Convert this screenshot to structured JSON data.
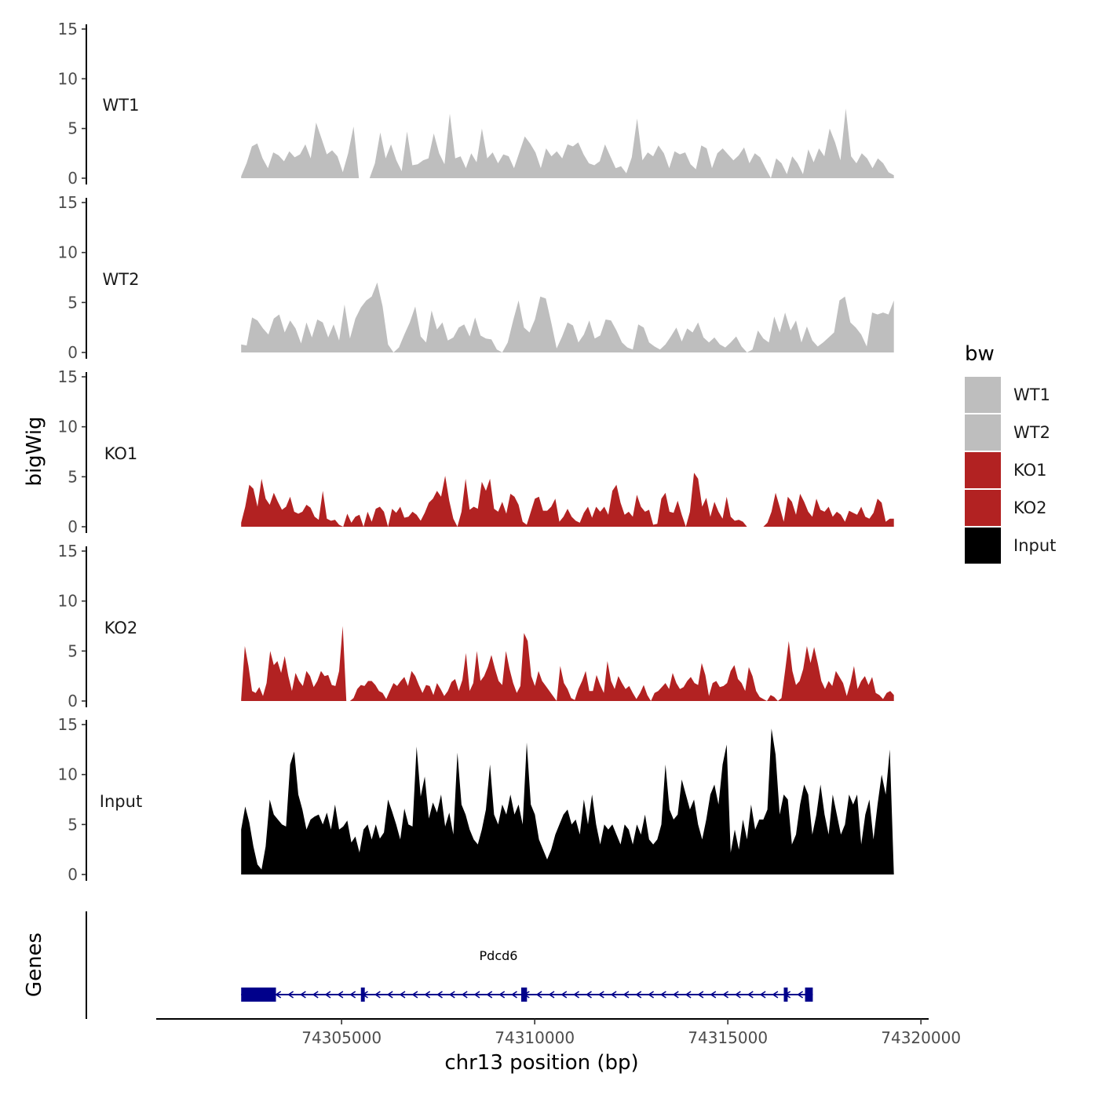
{
  "chart_data": {
    "type": "area",
    "ylabel": "bigWig",
    "genes_label": "Genes",
    "xlabel": "chr13 position (bp)",
    "x_start": 74302400,
    "x_end": 74319300,
    "xlim": [
      74300200,
      74320200
    ],
    "x_ticks": [
      74305000,
      74310000,
      74315000,
      74320000
    ],
    "x_tick_labels": [
      "74305000",
      "74310000",
      "74315000",
      "74320000"
    ],
    "ylim": [
      0,
      15
    ],
    "y_ticks": [
      0,
      5,
      10,
      15
    ],
    "y_tick_labels": [
      "0",
      "5",
      "10",
      "15"
    ],
    "legend": {
      "title": "bw",
      "entries": [
        {
          "label": "WT1",
          "color": "#bebebe"
        },
        {
          "label": "WT2",
          "color": "#bebebe"
        },
        {
          "label": "KO1",
          "color": "#b22222"
        },
        {
          "label": "KO2",
          "color": "#b22222"
        },
        {
          "label": "Input",
          "color": "#000000"
        }
      ]
    },
    "series": [
      {
        "name": "WT1",
        "color": "#bebebe",
        "values": [
          0.2,
          1.5,
          3.2,
          3.5,
          2.0,
          1.0,
          2.6,
          2.3,
          1.7,
          2.7,
          2.1,
          2.4,
          3.4,
          2.0,
          5.6,
          4.0,
          2.4,
          2.8,
          2.2,
          0.6,
          2.5,
          5.2,
          0,
          0,
          0,
          1.5,
          4.6,
          2.0,
          3.4,
          1.8,
          0.7,
          4.7,
          1.3,
          1.4,
          1.8,
          2.0,
          4.5,
          2.5,
          1.4,
          6.5,
          2.0,
          2.2,
          1.0,
          2.5,
          1.6,
          5.0,
          2.0,
          2.6,
          1.5,
          2.4,
          2.2,
          1.0,
          2.6,
          4.2,
          3.5,
          2.6,
          1.0,
          3.0,
          2.2,
          2.7,
          2.0,
          3.4,
          3.2,
          3.6,
          2.4,
          1.5,
          1.3,
          1.7,
          3.4,
          2.2,
          1.0,
          1.2,
          0.5,
          2.1,
          6.0,
          1.8,
          2.6,
          2.2,
          3.3,
          2.5,
          1.0,
          2.7,
          2.4,
          2.6,
          1.4,
          0.9,
          3.3,
          3.0,
          1.0,
          2.5,
          3.0,
          2.4,
          1.8,
          2.3,
          3.1,
          1.5,
          2.5,
          2.1,
          1.0,
          0,
          2.0,
          1.5,
          0.4,
          2.2,
          1.5,
          0.4,
          2.9,
          1.6,
          3.0,
          2.2,
          5.0,
          3.6,
          1.8,
          7.0,
          2.2,
          1.5,
          2.5,
          2.0,
          1.0,
          2.0,
          1.5,
          0.6,
          0.3
        ]
      },
      {
        "name": "WT2",
        "color": "#bebebe",
        "values": [
          0.8,
          0.7,
          3.5,
          3.2,
          2.4,
          1.8,
          3.4,
          3.8,
          2.0,
          3.2,
          2.4,
          0.9,
          3.0,
          1.5,
          3.3,
          3.0,
          1.5,
          2.8,
          1.2,
          4.8,
          1.4,
          3.4,
          4.5,
          5.2,
          5.6,
          7.0,
          4.6,
          0.8,
          0,
          0.5,
          1.8,
          3.0,
          4.6,
          1.6,
          1.0,
          4.2,
          2.3,
          3.0,
          1.2,
          1.5,
          2.5,
          2.8,
          1.6,
          3.5,
          1.7,
          1.4,
          1.3,
          0.3,
          0,
          1.0,
          3.2,
          5.2,
          2.5,
          2.0,
          3.3,
          5.6,
          5.4,
          3.0,
          0.4,
          1.6,
          3.0,
          2.7,
          1.0,
          1.8,
          3.2,
          1.4,
          1.7,
          3.3,
          3.2,
          2.2,
          1.0,
          0.5,
          0.3,
          2.8,
          2.5,
          1.0,
          0.6,
          0.3,
          0.8,
          1.6,
          2.5,
          1.1,
          2.4,
          2.0,
          3.0,
          1.5,
          1.0,
          1.5,
          0.8,
          0.5,
          1.0,
          1.6,
          0.6,
          0,
          0.3,
          2.2,
          1.4,
          1.0,
          3.6,
          2.0,
          4.0,
          2.2,
          3.2,
          1.0,
          2.6,
          1.2,
          0.6,
          1.0,
          1.5,
          2.0,
          5.2,
          5.6,
          3.0,
          2.5,
          1.8,
          0.6,
          4.0,
          3.8,
          4.0,
          3.8,
          5.2
        ]
      },
      {
        "name": "KO1",
        "color": "#b22222",
        "values": [
          0.4,
          2.0,
          4.2,
          3.8,
          2.0,
          4.8,
          2.8,
          2.2,
          3.4,
          2.5,
          1.7,
          2.0,
          3.0,
          1.5,
          1.3,
          1.5,
          2.2,
          1.9,
          1.0,
          0.7,
          3.6,
          0.8,
          0.6,
          0.7,
          0.2,
          0,
          1.3,
          0.4,
          1.0,
          1.2,
          0,
          1.5,
          0.5,
          1.8,
          2.0,
          1.5,
          0,
          1.8,
          1.4,
          2.0,
          0.9,
          1.0,
          1.5,
          1.2,
          0.6,
          1.4,
          2.4,
          2.8,
          3.6,
          3.0,
          5.1,
          2.6,
          0.8,
          0,
          1.5,
          4.8,
          1.7,
          2.0,
          1.8,
          4.5,
          3.6,
          4.8,
          1.8,
          1.5,
          2.5,
          1.3,
          3.3,
          3.0,
          2.2,
          0.5,
          0.2,
          1.5,
          2.8,
          3.0,
          1.6,
          1.6,
          2.0,
          2.8,
          0.5,
          1.0,
          1.8,
          1.0,
          0.6,
          0.4,
          1.4,
          2.0,
          0.9,
          2.0,
          1.5,
          2.0,
          1.2,
          3.6,
          4.2,
          2.4,
          1.2,
          1.5,
          1.0,
          3.2,
          2.0,
          1.5,
          1.7,
          0.2,
          0.3,
          2.8,
          3.4,
          1.5,
          1.4,
          2.6,
          1.2,
          0,
          1.5,
          5.4,
          4.8,
          2.0,
          2.9,
          1.0,
          2.5,
          1.5,
          0.8,
          3.0,
          1.0,
          0.6,
          0.7,
          0.5,
          0,
          0,
          0,
          0,
          0,
          0.4,
          1.5,
          3.4,
          2.0,
          0.5,
          3.0,
          2.5,
          1.2,
          3.3,
          2.5,
          1.5,
          1.0,
          2.8,
          1.7,
          1.5,
          2.0,
          1.0,
          1.5,
          1.2,
          0.5,
          1.6,
          1.4,
          1.2,
          2.0,
          1.0,
          0.8,
          1.4,
          2.8,
          2.4,
          0.5,
          0.8,
          0.8
        ]
      },
      {
        "name": "KO2",
        "color": "#b22222",
        "values": [
          0.2,
          5.5,
          3.5,
          1.0,
          0.8,
          1.4,
          0.5,
          1.8,
          5.0,
          3.6,
          4.0,
          2.8,
          4.5,
          2.5,
          1.0,
          2.8,
          2.0,
          1.5,
          3.0,
          2.5,
          1.4,
          2.0,
          3.0,
          2.5,
          2.6,
          1.6,
          1.5,
          3.0,
          7.5,
          0,
          0,
          0.3,
          1.2,
          1.6,
          1.5,
          2.0,
          2.0,
          1.6,
          1.0,
          0.8,
          0.2,
          1.0,
          1.8,
          1.5,
          2.0,
          2.4,
          1.5,
          3.0,
          2.5,
          1.6,
          0.8,
          1.6,
          1.5,
          0.6,
          1.8,
          1.2,
          0.5,
          1.0,
          1.9,
          2.2,
          1.0,
          2.1,
          4.8,
          1.0,
          1.8,
          5.0,
          2.0,
          2.5,
          3.4,
          4.6,
          3.2,
          2.0,
          1.6,
          5.0,
          3.2,
          1.8,
          0.8,
          1.5,
          6.8,
          6.0,
          2.5,
          1.5,
          3.0,
          2.0,
          1.5,
          1.0,
          0.5,
          0,
          3.5,
          1.8,
          1.2,
          0.3,
          0.1,
          1.2,
          2.0,
          3.0,
          1.0,
          1.0,
          2.6,
          1.6,
          0.8,
          4.0,
          2.0,
          1.2,
          2.5,
          1.8,
          1.2,
          1.5,
          0.8,
          0.2,
          0.8,
          1.6,
          0.6,
          0,
          0.8,
          1.0,
          1.4,
          1.8,
          1.2,
          2.8,
          1.8,
          1.2,
          1.4,
          2.0,
          2.4,
          1.8,
          1.6,
          3.8,
          2.6,
          0.5,
          1.8,
          2.0,
          1.4,
          1.5,
          1.8,
          3.0,
          3.6,
          2.2,
          1.8,
          1.0,
          3.4,
          2.5,
          1.0,
          0.4,
          0.2,
          0,
          0.6,
          0.4,
          0,
          0.3,
          3.0,
          6.0,
          3.0,
          1.6,
          2.0,
          3.2,
          5.5,
          3.8,
          5.4,
          3.8,
          2.0,
          1.2,
          2.0,
          1.5,
          3.0,
          2.4,
          1.8,
          0.5,
          1.8,
          3.5,
          1.2,
          2.0,
          2.5,
          1.6,
          2.4,
          0.8,
          0.6,
          0.2,
          0.8,
          1.0,
          0.6
        ]
      },
      {
        "name": "Input",
        "color": "#000000",
        "values": [
          4.5,
          6.8,
          5.2,
          2.8,
          1.0,
          0.5,
          2.8,
          7.5,
          6.0,
          5.5,
          5.0,
          4.8,
          11.0,
          12.3,
          8.0,
          6.5,
          4.5,
          5.5,
          5.8,
          6.0,
          5.0,
          6.2,
          4.5,
          7.0,
          4.5,
          4.8,
          5.4,
          3.2,
          3.8,
          2.2,
          4.5,
          5.0,
          3.5,
          5.0,
          3.6,
          4.2,
          7.5,
          6.3,
          5.0,
          3.5,
          6.6,
          5.0,
          4.8,
          12.8,
          7.8,
          9.8,
          5.6,
          7.2,
          6.2,
          8.0,
          4.8,
          6.2,
          4.0,
          12.2,
          7.0,
          6.0,
          4.5,
          3.5,
          3.0,
          4.5,
          6.5,
          11.0,
          6.0,
          5.0,
          7.0,
          6.0,
          8.0,
          6.0,
          7.0,
          5.0,
          13.2,
          7.0,
          6.0,
          3.5,
          2.5,
          1.5,
          2.5,
          4.0,
          5.0,
          6.0,
          6.5,
          5.0,
          5.5,
          4.0,
          7.5,
          5.0,
          8.0,
          5.0,
          3.0,
          5.0,
          4.5,
          5.0,
          4.0,
          3.0,
          5.0,
          4.5,
          3.0,
          5.0,
          4.0,
          6.0,
          3.5,
          3.0,
          3.5,
          5.0,
          11.0,
          6.5,
          5.5,
          6.0,
          9.5,
          8.0,
          6.5,
          7.5,
          5.0,
          3.5,
          5.5,
          8.0,
          9.0,
          7.0,
          11.0,
          13.0,
          2.2,
          4.5,
          2.5,
          5.5,
          3.5,
          7.0,
          4.5,
          5.5,
          5.5,
          6.5,
          14.6,
          12.0,
          6.0,
          8.0,
          7.5,
          3.0,
          4.0,
          7.0,
          9.0,
          8.0,
          4.0,
          6.0,
          9.0,
          6.0,
          4.0,
          8.0,
          6.0,
          4.0,
          5.0,
          8.0,
          7.0,
          8.0,
          3.0,
          6.0,
          7.5,
          3.5,
          7.0,
          10.0,
          8.0,
          12.5,
          0
        ]
      }
    ],
    "gene": {
      "name": "Pdcd6",
      "strand": "-",
      "start": 74302400,
      "end": 74317200,
      "exons": [
        [
          74302400,
          74303300
        ],
        [
          74305500,
          74305600
        ],
        [
          74309650,
          74309800
        ],
        [
          74316450,
          74316550
        ],
        [
          74317000,
          74317200
        ]
      ]
    }
  }
}
